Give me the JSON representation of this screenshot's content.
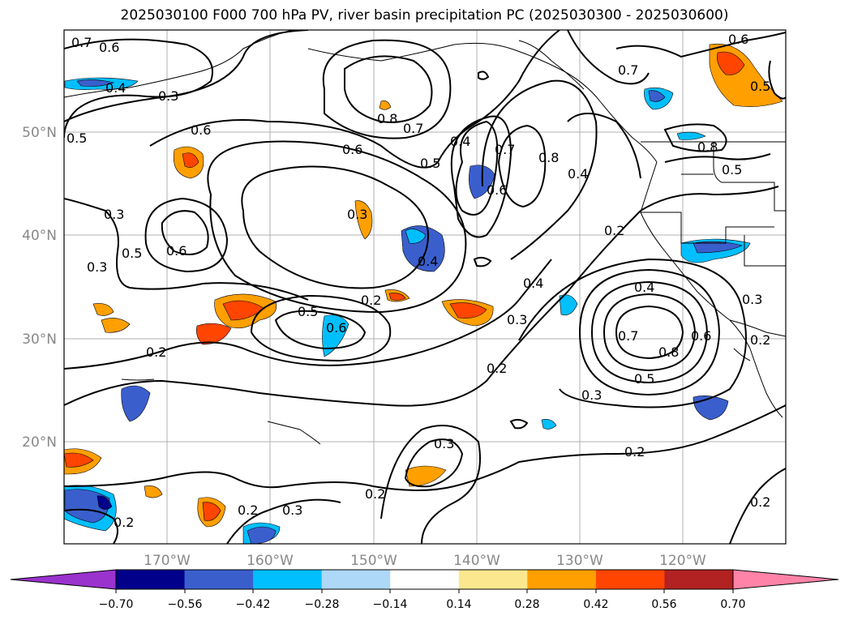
{
  "title": "2025030100 F000 700 hPa PV, river basin precipitation PC (2025030300 - 2025030600)",
  "map": {
    "lat_labels": [
      "50°N",
      "40°N",
      "30°N",
      "20°N"
    ],
    "lon_labels": [
      "170°W",
      "160°W",
      "150°W",
      "140°W",
      "130°W",
      "120°W"
    ],
    "contour_labels": [
      "0.7",
      "0.6",
      "0.4",
      "0.3",
      "0.6",
      "0.5",
      "0.8",
      "0.7",
      "0.5",
      "0.4",
      "0.6",
      "0.7",
      "0.8",
      "0.4",
      "0.6",
      "0.7",
      "0.6",
      "0.5",
      "0.8",
      "0.5",
      "0.3",
      "0.5",
      "0.6",
      "0.3",
      "0.2",
      "0.4",
      "0.4",
      "0.2",
      "0.5",
      "0.6",
      "0.3",
      "0.2",
      "0.3",
      "0.4",
      "0.7",
      "0.8",
      "0.6",
      "0.5",
      "0.3",
      "0.3",
      "0.2",
      "0.2",
      "0.2",
      "0.3",
      "0.3",
      "0.2",
      "0.2",
      "0.2",
      "0.2"
    ]
  },
  "colorbar": {
    "ticks": [
      "−0.70",
      "−0.56",
      "−0.42",
      "−0.28",
      "−0.14",
      "0.14",
      "0.28",
      "0.42",
      "0.56",
      "0.70"
    ],
    "colors": [
      "#9a32cd",
      "#00008b",
      "#3a5fcd",
      "#00bfff",
      "#add8f8",
      "#ffffff",
      "#fbe78e",
      "#ff9f00",
      "#ff4500",
      "#b22222",
      "#ff83a8"
    ]
  }
}
